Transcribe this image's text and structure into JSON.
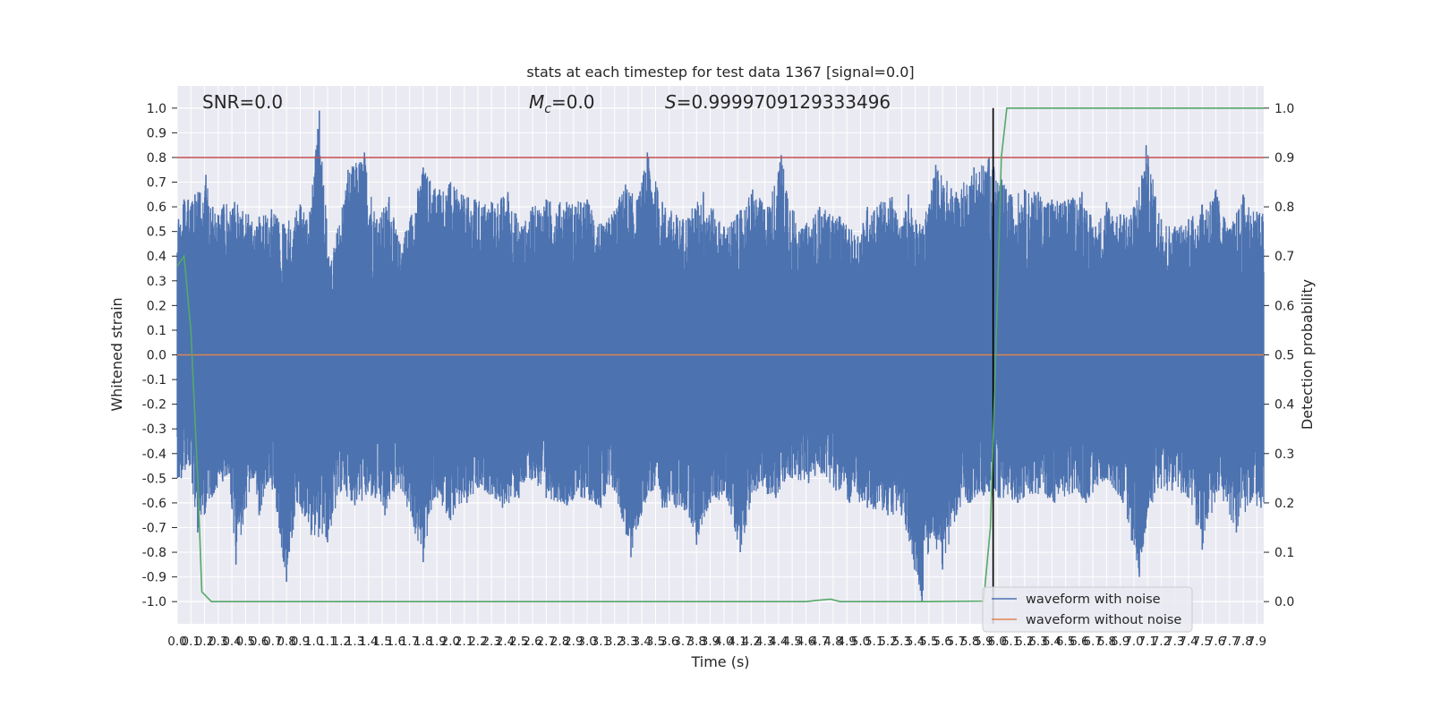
{
  "chart_data": {
    "type": "line",
    "title": "stats at each timestep for test data 1367 [signal=0.0]",
    "annotations": {
      "snr": "SNR=0.0",
      "mc_symbol": "M",
      "mc_sub": "c",
      "mc_value": "=0.0",
      "s_symbol": "S",
      "s_value": "=0.9999709129333496"
    },
    "xlabel": "Time (s)",
    "ylabel": "Whitened strain",
    "y2label": "Detection probability",
    "xlim": [
      0.0,
      7.95
    ],
    "ylim": [
      -1.09,
      1.09
    ],
    "y2lim": [
      -0.045,
      1.045
    ],
    "xticks_step": 0.1,
    "xticks_count": 80,
    "yticks": [
      1.0,
      0.9,
      0.8,
      0.7,
      0.6,
      0.5,
      0.4,
      0.3,
      0.2,
      0.1,
      0.0,
      -0.1,
      -0.2,
      -0.3,
      -0.4,
      -0.5,
      -0.6,
      -0.7,
      -0.8,
      -0.9,
      -1.0
    ],
    "y2ticks": [
      1.0,
      0.9,
      0.8,
      0.7,
      0.6,
      0.5,
      0.4,
      0.3,
      0.2,
      0.1,
      0.0
    ],
    "threshold": 0.9,
    "detection_time": 5.97,
    "series": [
      {
        "name": "waveform with noise",
        "color": "#4c72b0",
        "peaks_pos": [
          [
            0.01,
            0.55
          ],
          [
            0.05,
            0.63
          ],
          [
            0.13,
            0.65
          ],
          [
            0.21,
            0.73
          ],
          [
            0.26,
            0.6
          ],
          [
            0.34,
            0.61
          ],
          [
            0.42,
            0.62
          ],
          [
            0.52,
            0.57
          ],
          [
            0.6,
            0.56
          ],
          [
            0.69,
            0.59
          ],
          [
            0.78,
            0.53
          ],
          [
            0.9,
            0.61
          ],
          [
            0.97,
            0.58
          ],
          [
            1.04,
            0.99
          ],
          [
            1.12,
            0.36
          ],
          [
            1.25,
            0.75
          ],
          [
            1.37,
            0.82
          ],
          [
            1.46,
            0.55
          ],
          [
            1.55,
            0.64
          ],
          [
            1.63,
            0.45
          ],
          [
            1.67,
            0.5
          ],
          [
            1.8,
            0.76
          ],
          [
            1.92,
            0.67
          ],
          [
            2.0,
            0.7
          ],
          [
            2.08,
            0.65
          ],
          [
            2.18,
            0.63
          ],
          [
            2.3,
            0.62
          ],
          [
            2.42,
            0.66
          ],
          [
            2.52,
            0.52
          ],
          [
            2.6,
            0.6
          ],
          [
            2.7,
            0.63
          ],
          [
            2.85,
            0.62
          ],
          [
            3.0,
            0.63
          ],
          [
            3.12,
            0.52
          ],
          [
            3.28,
            0.69
          ],
          [
            3.37,
            0.63
          ],
          [
            3.44,
            0.82
          ],
          [
            3.55,
            0.62
          ],
          [
            3.7,
            0.55
          ],
          [
            3.85,
            0.66
          ],
          [
            4.0,
            0.52
          ],
          [
            4.1,
            0.57
          ],
          [
            4.21,
            0.67
          ],
          [
            4.32,
            0.6
          ],
          [
            4.42,
            0.81
          ],
          [
            4.55,
            0.5
          ],
          [
            4.7,
            0.6
          ],
          [
            4.85,
            0.56
          ],
          [
            4.98,
            0.48
          ],
          [
            5.05,
            0.6
          ],
          [
            5.15,
            0.62
          ],
          [
            5.23,
            0.64
          ],
          [
            5.3,
            0.52
          ],
          [
            5.35,
            0.65
          ],
          [
            5.45,
            0.51
          ],
          [
            5.55,
            0.77
          ],
          [
            5.7,
            0.66
          ],
          [
            5.83,
            0.76
          ],
          [
            5.94,
            0.8
          ],
          [
            6.1,
            0.65
          ],
          [
            6.2,
            0.67
          ],
          [
            6.3,
            0.66
          ],
          [
            6.4,
            0.63
          ],
          [
            6.52,
            0.63
          ],
          [
            6.62,
            0.66
          ],
          [
            6.72,
            0.52
          ],
          [
            6.8,
            0.62
          ],
          [
            6.9,
            0.57
          ],
          [
            7.0,
            0.6
          ],
          [
            7.09,
            0.85
          ],
          [
            7.2,
            0.55
          ],
          [
            7.3,
            0.52
          ],
          [
            7.4,
            0.55
          ],
          [
            7.5,
            0.61
          ],
          [
            7.6,
            0.67
          ],
          [
            7.7,
            0.51
          ],
          [
            7.8,
            0.65
          ],
          [
            7.9,
            0.58
          ]
        ],
        "peaks_neg": [
          [
            0.03,
            -0.5
          ],
          [
            0.09,
            -0.45
          ],
          [
            0.15,
            -0.72
          ],
          [
            0.27,
            -0.56
          ],
          [
            0.38,
            -0.48
          ],
          [
            0.43,
            -0.85
          ],
          [
            0.55,
            -0.5
          ],
          [
            0.6,
            -0.65
          ],
          [
            0.68,
            -0.5
          ],
          [
            0.8,
            -0.92
          ],
          [
            0.88,
            -0.6
          ],
          [
            0.98,
            -0.73
          ],
          [
            1.1,
            -0.76
          ],
          [
            1.2,
            -0.55
          ],
          [
            1.3,
            -0.61
          ],
          [
            1.45,
            -0.58
          ],
          [
            1.52,
            -0.65
          ],
          [
            1.62,
            -0.52
          ],
          [
            1.8,
            -0.84
          ],
          [
            1.88,
            -0.58
          ],
          [
            2.0,
            -0.67
          ],
          [
            2.12,
            -0.6
          ],
          [
            2.25,
            -0.55
          ],
          [
            2.38,
            -0.62
          ],
          [
            2.5,
            -0.58
          ],
          [
            2.58,
            -0.5
          ],
          [
            2.7,
            -0.58
          ],
          [
            2.85,
            -0.61
          ],
          [
            2.98,
            -0.58
          ],
          [
            3.1,
            -0.62
          ],
          [
            3.2,
            -0.55
          ],
          [
            3.32,
            -0.82
          ],
          [
            3.45,
            -0.55
          ],
          [
            3.55,
            -0.62
          ],
          [
            3.65,
            -0.62
          ],
          [
            3.75,
            -0.66
          ],
          [
            3.8,
            -0.77
          ],
          [
            3.9,
            -0.6
          ],
          [
            4.02,
            -0.58
          ],
          [
            4.12,
            -0.8
          ],
          [
            4.22,
            -0.55
          ],
          [
            4.38,
            -0.58
          ],
          [
            4.5,
            -0.5
          ],
          [
            4.62,
            -0.52
          ],
          [
            4.72,
            -0.48
          ],
          [
            4.82,
            -0.55
          ],
          [
            4.92,
            -0.6
          ],
          [
            5.05,
            -0.62
          ],
          [
            5.2,
            -0.65
          ],
          [
            5.3,
            -0.65
          ],
          [
            5.45,
            -1.0
          ],
          [
            5.52,
            -0.72
          ],
          [
            5.6,
            -0.87
          ],
          [
            5.7,
            -0.65
          ],
          [
            5.8,
            -0.6
          ],
          [
            5.9,
            -0.57
          ],
          [
            6.02,
            -0.58
          ],
          [
            6.15,
            -0.6
          ],
          [
            6.28,
            -0.56
          ],
          [
            6.42,
            -0.6
          ],
          [
            6.55,
            -0.56
          ],
          [
            6.65,
            -0.6
          ],
          [
            6.8,
            -0.5
          ],
          [
            6.92,
            -0.6
          ],
          [
            7.04,
            -0.9
          ],
          [
            7.15,
            -0.56
          ],
          [
            7.28,
            -0.55
          ],
          [
            7.4,
            -0.58
          ],
          [
            7.5,
            -0.79
          ],
          [
            7.62,
            -0.55
          ],
          [
            7.75,
            -0.72
          ],
          [
            7.85,
            -0.6
          ],
          [
            7.93,
            -0.62
          ]
        ]
      },
      {
        "name": "waveform without noise",
        "color": "#dd8452",
        "x": [
          0.0,
          7.95
        ],
        "y": [
          0.0,
          0.0
        ]
      },
      {
        "name": "detection probability",
        "color": "#55a868",
        "x": [
          0.0,
          0.05,
          0.1,
          0.15,
          0.18,
          0.25,
          0.3,
          1.0,
          2.0,
          3.0,
          4.0,
          4.6,
          4.7,
          4.78,
          4.85,
          5.0,
          5.5,
          5.9,
          5.95,
          6.0,
          6.03,
          6.07,
          7.95
        ],
        "y": [
          0.68,
          0.7,
          0.55,
          0.25,
          0.02,
          0.0,
          0.0,
          0.0,
          0.0,
          0.0,
          0.0,
          0.0,
          0.003,
          0.005,
          0.0,
          0.0,
          0.0,
          0.001,
          0.15,
          0.6,
          0.9,
          1.0,
          1.0
        ]
      }
    ],
    "legend": {
      "placement": "lower-right",
      "entries": [
        {
          "label": "waveform with noise",
          "color": "#4c72b0"
        },
        {
          "label": "waveform without noise",
          "color": "#dd8452"
        }
      ]
    },
    "colors": {
      "background": "#eaeaf2",
      "grid": "#ffffff",
      "threshold": "#c44e52",
      "vline": "#000000"
    }
  }
}
